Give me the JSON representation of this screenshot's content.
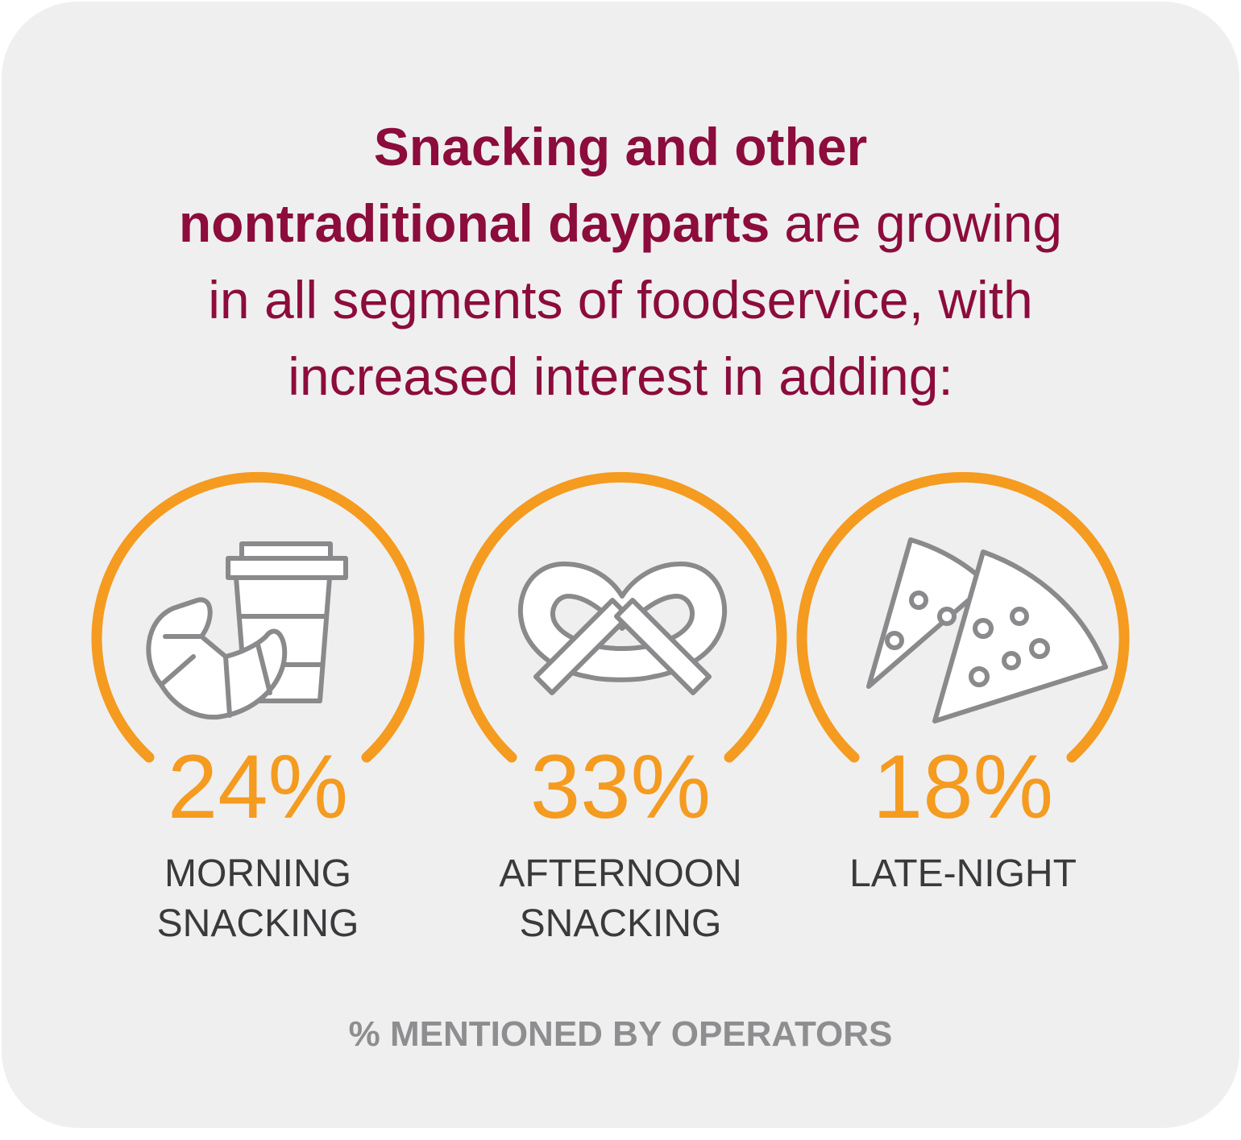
{
  "header": {
    "title_lines": [
      {
        "bold": "Snacking and other"
      },
      {
        "bold": "nontraditional dayparts",
        "regular": "are growing"
      },
      {
        "regular": "in all segments of foodservice, with"
      },
      {
        "regular": "increased interest in adding:"
      }
    ]
  },
  "stats": [
    {
      "value": "24%",
      "label_lines": [
        "MORNING",
        "SNACKING"
      ]
    },
    {
      "value": "33%",
      "label_lines": [
        "AFTERNOON",
        "SNACKING"
      ]
    },
    {
      "value": "18%",
      "label_lines": [
        "LATE-NIGHT"
      ]
    }
  ],
  "footnote": "% MENTIONED BY OPERATORS"
}
